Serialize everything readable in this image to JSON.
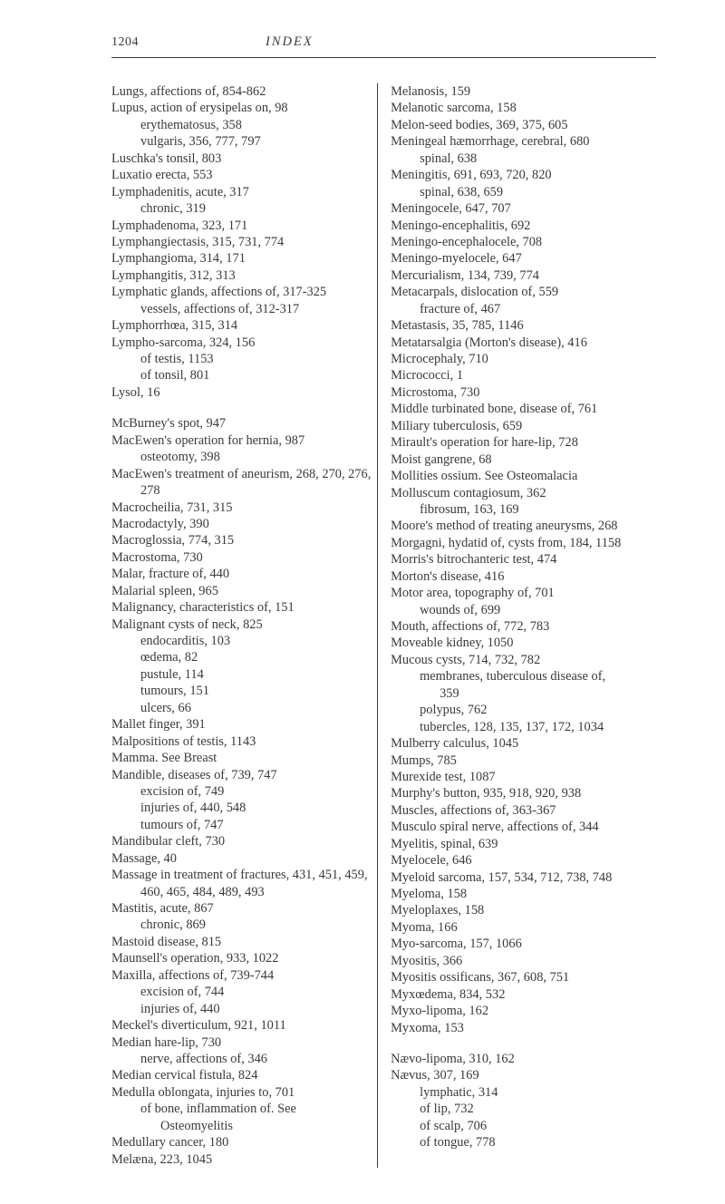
{
  "header": {
    "page_number": "1204",
    "section_title": "INDEX"
  },
  "columns": {
    "left": [
      {
        "cls": "i1",
        "t": "Lungs, affections of, 854-862"
      },
      {
        "cls": "i1",
        "t": "Lupus, action of erysipelas on, 98"
      },
      {
        "cls": "i2",
        "t": "erythematosus, 358"
      },
      {
        "cls": "i2",
        "t": "vulgaris, 356, 777, 797"
      },
      {
        "cls": "i1",
        "t": "Luschka's tonsil, 803"
      },
      {
        "cls": "i1",
        "t": "Luxatio erecta, 553"
      },
      {
        "cls": "i1",
        "t": "Lymphadenitis, acute, 317"
      },
      {
        "cls": "i2",
        "t": "chronic, 319"
      },
      {
        "cls": "i1",
        "t": "Lymphadenoma, 323, 171"
      },
      {
        "cls": "i1",
        "t": "Lymphangiectasis, 315, 731, 774"
      },
      {
        "cls": "i1",
        "t": "Lymphangioma, 314, 171"
      },
      {
        "cls": "i1",
        "t": "Lymphangitis, 312, 313"
      },
      {
        "cls": "i1",
        "t": "Lymphatic glands, affections of, 317-325"
      },
      {
        "cls": "i2",
        "t": "vessels, affections of, 312-317"
      },
      {
        "cls": "i1",
        "t": "Lymphorrhœa, 315, 314"
      },
      {
        "cls": "i1",
        "t": "Lympho-sarcoma, 324, 156"
      },
      {
        "cls": "i2",
        "t": "of testis, 1153"
      },
      {
        "cls": "i2",
        "t": "of tonsil, 801"
      },
      {
        "cls": "i1",
        "t": "Lysol, 16"
      },
      {
        "cls": "gap",
        "t": ""
      },
      {
        "cls": "i1",
        "t": "McBurney's spot, 947"
      },
      {
        "cls": "i1",
        "t": "MacEwen's operation for hernia, 987"
      },
      {
        "cls": "i2",
        "t": "osteotomy, 398"
      },
      {
        "cls": "i1",
        "t": "MacEwen's treatment of aneurism, 268, 270, 276, 278"
      },
      {
        "cls": "i1",
        "t": "Macrocheilia, 731, 315"
      },
      {
        "cls": "i1",
        "t": "Macrodactyly, 390"
      },
      {
        "cls": "i1",
        "t": "Macroglossia, 774, 315"
      },
      {
        "cls": "i1",
        "t": "Macrostoma, 730"
      },
      {
        "cls": "i1",
        "t": "Malar, fracture of, 440"
      },
      {
        "cls": "i1",
        "t": "Malarial spleen, 965"
      },
      {
        "cls": "i1",
        "t": "Malignancy, characteristics of, 151"
      },
      {
        "cls": "i1",
        "t": "Malignant cysts of neck, 825"
      },
      {
        "cls": "i2",
        "t": "endocarditis, 103"
      },
      {
        "cls": "i2",
        "t": "œdema, 82"
      },
      {
        "cls": "i2",
        "t": "pustule, 114"
      },
      {
        "cls": "i2",
        "t": "tumours, 151"
      },
      {
        "cls": "i2",
        "t": "ulcers, 66"
      },
      {
        "cls": "i1",
        "t": "Mallet finger, 391"
      },
      {
        "cls": "i1",
        "t": "Malpositions of testis, 1143"
      },
      {
        "cls": "i1",
        "t": "Mamma.   See Breast"
      },
      {
        "cls": "i1",
        "t": "Mandible, diseases of, 739, 747"
      },
      {
        "cls": "i2",
        "t": "excision of, 749"
      },
      {
        "cls": "i2",
        "t": "injuries of, 440, 548"
      },
      {
        "cls": "i2",
        "t": "tumours of, 747"
      },
      {
        "cls": "i1",
        "t": "Mandibular cleft, 730"
      },
      {
        "cls": "i1",
        "t": "Massage, 40"
      },
      {
        "cls": "i1",
        "t": "Massage in treatment of fractures, 431, 451, 459, 460, 465, 484, 489, 493"
      },
      {
        "cls": "i1",
        "t": "Mastitis, acute, 867"
      },
      {
        "cls": "i2",
        "t": "chronic, 869"
      },
      {
        "cls": "i1",
        "t": "Mastoid disease, 815"
      },
      {
        "cls": "i1",
        "t": "Maunsell's operation, 933, 1022"
      },
      {
        "cls": "i1",
        "t": "Maxilla, affections of, 739-744"
      },
      {
        "cls": "i2",
        "t": "excision of, 744"
      },
      {
        "cls": "i2",
        "t": "injuries of, 440"
      },
      {
        "cls": "i1",
        "t": "Meckel's diverticulum, 921, 1011"
      },
      {
        "cls": "i1",
        "t": "Median hare-lip, 730"
      },
      {
        "cls": "i2",
        "t": "nerve, affections of, 346"
      },
      {
        "cls": "i1",
        "t": "Median cervical fistula, 824"
      },
      {
        "cls": "i1",
        "t": "Medulla oblongata, injuries to, 701"
      },
      {
        "cls": "i2",
        "t": "of   bone,   inflammation   of.     See"
      },
      {
        "cls": "i3",
        "t": "Osteomyelitis"
      },
      {
        "cls": "i1",
        "t": "Medullary cancer, 180"
      },
      {
        "cls": "i1",
        "t": "Melæna, 223, 1045"
      }
    ],
    "right": [
      {
        "cls": "i1",
        "t": "Melanosis, 159"
      },
      {
        "cls": "i1",
        "t": "Melanotic sarcoma, 158"
      },
      {
        "cls": "i1",
        "t": "Melon-seed bodies, 369, 375, 605"
      },
      {
        "cls": "i1",
        "t": "Meningeal hæmorrhage, cerebral, 680"
      },
      {
        "cls": "i2",
        "t": "spinal, 638"
      },
      {
        "cls": "i1",
        "t": "Meningitis, 691, 693, 720, 820"
      },
      {
        "cls": "i2",
        "t": "spinal, 638, 659"
      },
      {
        "cls": "i1",
        "t": "Meningocele, 647, 707"
      },
      {
        "cls": "i1",
        "t": "Meningo-encephalitis, 692"
      },
      {
        "cls": "i1",
        "t": "Meningo-encephalocele, 708"
      },
      {
        "cls": "i1",
        "t": "Meningo-myelocele, 647"
      },
      {
        "cls": "i1",
        "t": "Mercurialism, 134, 739, 774"
      },
      {
        "cls": "i1",
        "t": "Metacarpals, dislocation of, 559"
      },
      {
        "cls": "i2",
        "t": "fracture of, 467"
      },
      {
        "cls": "i1",
        "t": "Metastasis, 35, 785, 1146"
      },
      {
        "cls": "i1",
        "t": "Metatarsalgia (Morton's disease), 416"
      },
      {
        "cls": "i1",
        "t": "Microcephaly, 710"
      },
      {
        "cls": "i1",
        "t": "Micrococci, 1"
      },
      {
        "cls": "i1",
        "t": "Microstoma, 730"
      },
      {
        "cls": "i1",
        "t": "Middle turbinated bone, disease of, 761"
      },
      {
        "cls": "i1",
        "t": "Miliary tuberculosis, 659"
      },
      {
        "cls": "i1",
        "t": "Mirault's operation for hare-lip, 728"
      },
      {
        "cls": "i1",
        "t": "Moist gangrene, 68"
      },
      {
        "cls": "i1",
        "t": "Mollities ossium.   See Osteomalacia"
      },
      {
        "cls": "i1",
        "t": "Molluscum contagiosum, 362"
      },
      {
        "cls": "i2",
        "t": "fibrosum, 163, 169"
      },
      {
        "cls": "i1",
        "t": "Moore's method of treating aneurysms, 268"
      },
      {
        "cls": "i1",
        "t": "Morgagni, hydatid of, cysts from, 184, 1158"
      },
      {
        "cls": "i1",
        "t": "Morris's bitrochanteric test, 474"
      },
      {
        "cls": "i1",
        "t": "Morton's disease, 416"
      },
      {
        "cls": "i1",
        "t": "Motor area, topography of, 701"
      },
      {
        "cls": "i2",
        "t": "wounds of, 699"
      },
      {
        "cls": "i1",
        "t": "Mouth, affections of, 772, 783"
      },
      {
        "cls": "i1",
        "t": "Moveable kidney, 1050"
      },
      {
        "cls": "i1",
        "t": "Mucous cysts, 714, 732, 782"
      },
      {
        "cls": "i2",
        "t": "membranes, tuberculous disease of,"
      },
      {
        "cls": "i3",
        "t": "359"
      },
      {
        "cls": "i2",
        "t": "polypus, 762"
      },
      {
        "cls": "i2",
        "t": "tubercles, 128, 135, 137, 172, 1034"
      },
      {
        "cls": "i1",
        "t": "Mulberry calculus, 1045"
      },
      {
        "cls": "i1",
        "t": "Mumps, 785"
      },
      {
        "cls": "i1",
        "t": "Murexide test, 1087"
      },
      {
        "cls": "i1",
        "t": "Murphy's button, 935, 918, 920, 938"
      },
      {
        "cls": "i1",
        "t": "Muscles, affections of, 363-367"
      },
      {
        "cls": "i1",
        "t": "Musculo spiral nerve, affections of, 344"
      },
      {
        "cls": "i1",
        "t": "Myelitis, spinal, 639"
      },
      {
        "cls": "i1",
        "t": "Myelocele, 646"
      },
      {
        "cls": "i1",
        "t": "Myeloid sarcoma, 157, 534, 712, 738, 748"
      },
      {
        "cls": "i1",
        "t": "Myeloma, 158"
      },
      {
        "cls": "i1",
        "t": "Myeloplaxes, 158"
      },
      {
        "cls": "i1",
        "t": "Myoma, 166"
      },
      {
        "cls": "i1",
        "t": "Myo-sarcoma, 157, 1066"
      },
      {
        "cls": "i1",
        "t": "Myositis, 366"
      },
      {
        "cls": "i1",
        "t": "Myositis ossificans, 367, 608, 751"
      },
      {
        "cls": "i1",
        "t": "Myxœdema, 834, 532"
      },
      {
        "cls": "i1",
        "t": "Myxo-lipoma, 162"
      },
      {
        "cls": "i1",
        "t": "Myxoma, 153"
      },
      {
        "cls": "gap",
        "t": ""
      },
      {
        "cls": "i1",
        "t": "Nævo-lipoma, 310, 162"
      },
      {
        "cls": "i1",
        "t": "Nævus, 307, 169"
      },
      {
        "cls": "i2",
        "t": "lymphatic, 314"
      },
      {
        "cls": "i2",
        "t": "of lip, 732"
      },
      {
        "cls": "i2",
        "t": "of scalp, 706"
      },
      {
        "cls": "i2",
        "t": "of tongue, 778"
      }
    ]
  }
}
